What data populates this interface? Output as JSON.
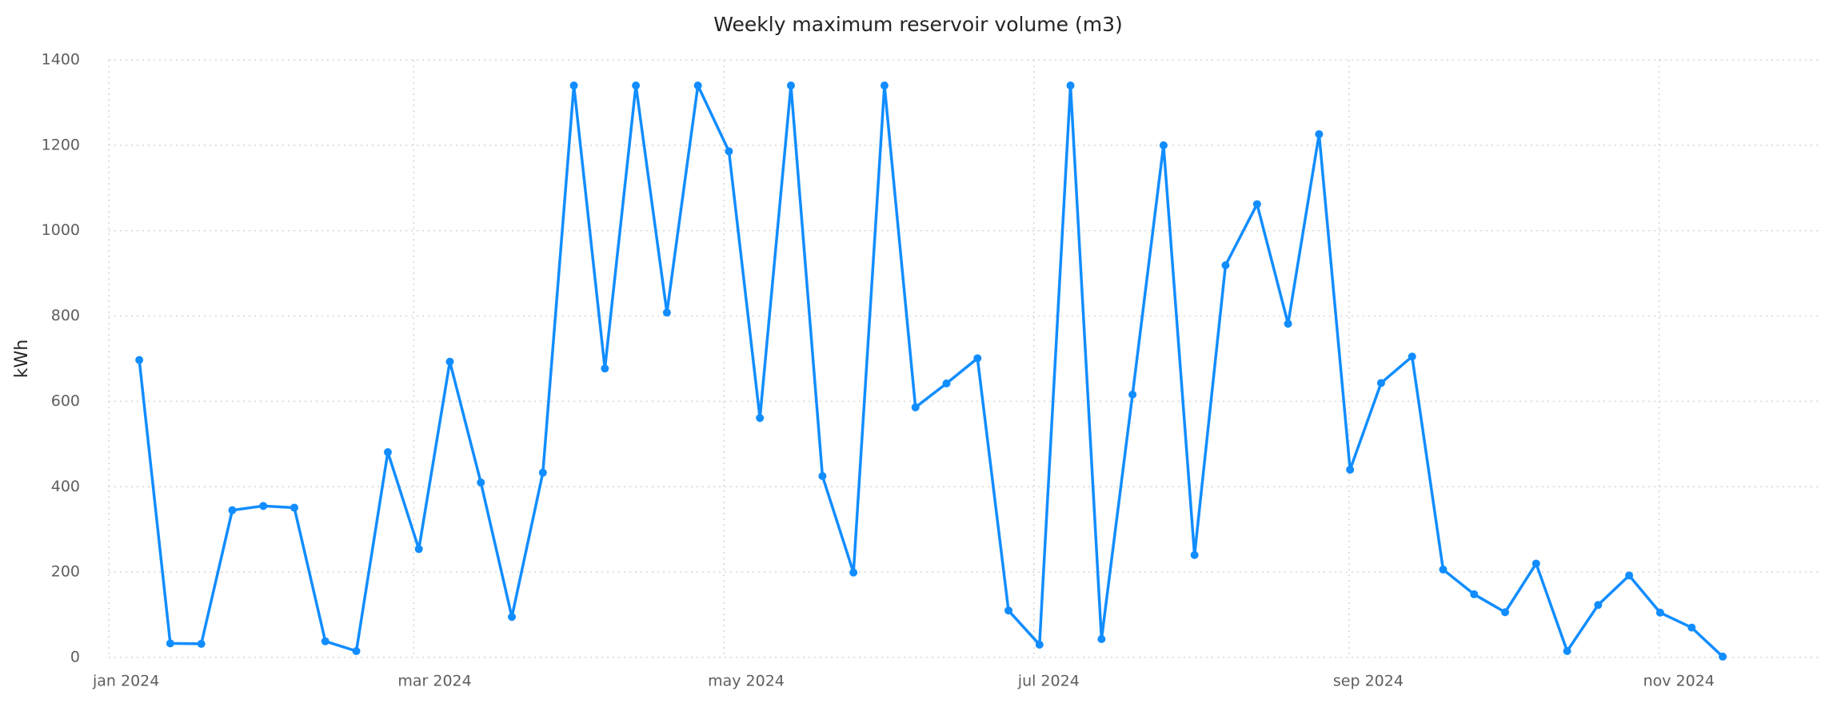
{
  "chart_data": {
    "type": "line",
    "title": "Weekly maximum reservoir volume (m3)",
    "y_label": "kWh",
    "x": [
      6,
      12.1,
      18.2,
      24.3,
      30.4,
      36.5,
      42.6,
      48.7,
      54.9,
      61,
      67.1,
      73.2,
      79.3,
      85.4,
      91.5,
      97.6,
      103.7,
      109.8,
      115.9,
      122,
      128.1,
      134.2,
      140.4,
      146.5,
      152.6,
      158.7,
      164.8,
      170.9,
      177,
      183.1,
      189.2,
      195.3,
      201.4,
      207.5,
      213.6,
      219.7,
      225.9,
      232,
      238.1,
      244.2,
      250.3,
      256.4,
      262.5,
      268.6,
      274.7,
      280.8,
      286.9,
      293,
      299.1,
      305.2,
      311.4,
      317.5
    ],
    "series": [
      {
        "name": "kWh",
        "color": "#118dff",
        "values": [
          697,
          33,
          32,
          345,
          355,
          351,
          38,
          15,
          481,
          254,
          693,
          410,
          95,
          433,
          1340,
          677,
          1340,
          808,
          1340,
          1186,
          561,
          1340,
          425,
          199,
          1340,
          586,
          642,
          701,
          110,
          30,
          1340,
          43,
          616,
          1200,
          240,
          919,
          1062,
          782,
          1226,
          440,
          643,
          705,
          206,
          148,
          106,
          220,
          15,
          123,
          192,
          105,
          70,
          2
        ]
      }
    ],
    "xlim": [
      0,
      337
    ],
    "xticks": [
      {
        "value": 0,
        "label": "jan 2024"
      },
      {
        "value": 60,
        "label": "mar 2024"
      },
      {
        "value": 121,
        "label": "may 2024"
      },
      {
        "value": 182,
        "label": "jul 2024"
      },
      {
        "value": 244,
        "label": "sep 2024"
      },
      {
        "value": 305,
        "label": "nov 2024"
      }
    ],
    "ylim": [
      0,
      1400
    ],
    "yticks": [
      0,
      200,
      400,
      600,
      800,
      1000,
      1200,
      1400
    ],
    "grid": true
  }
}
